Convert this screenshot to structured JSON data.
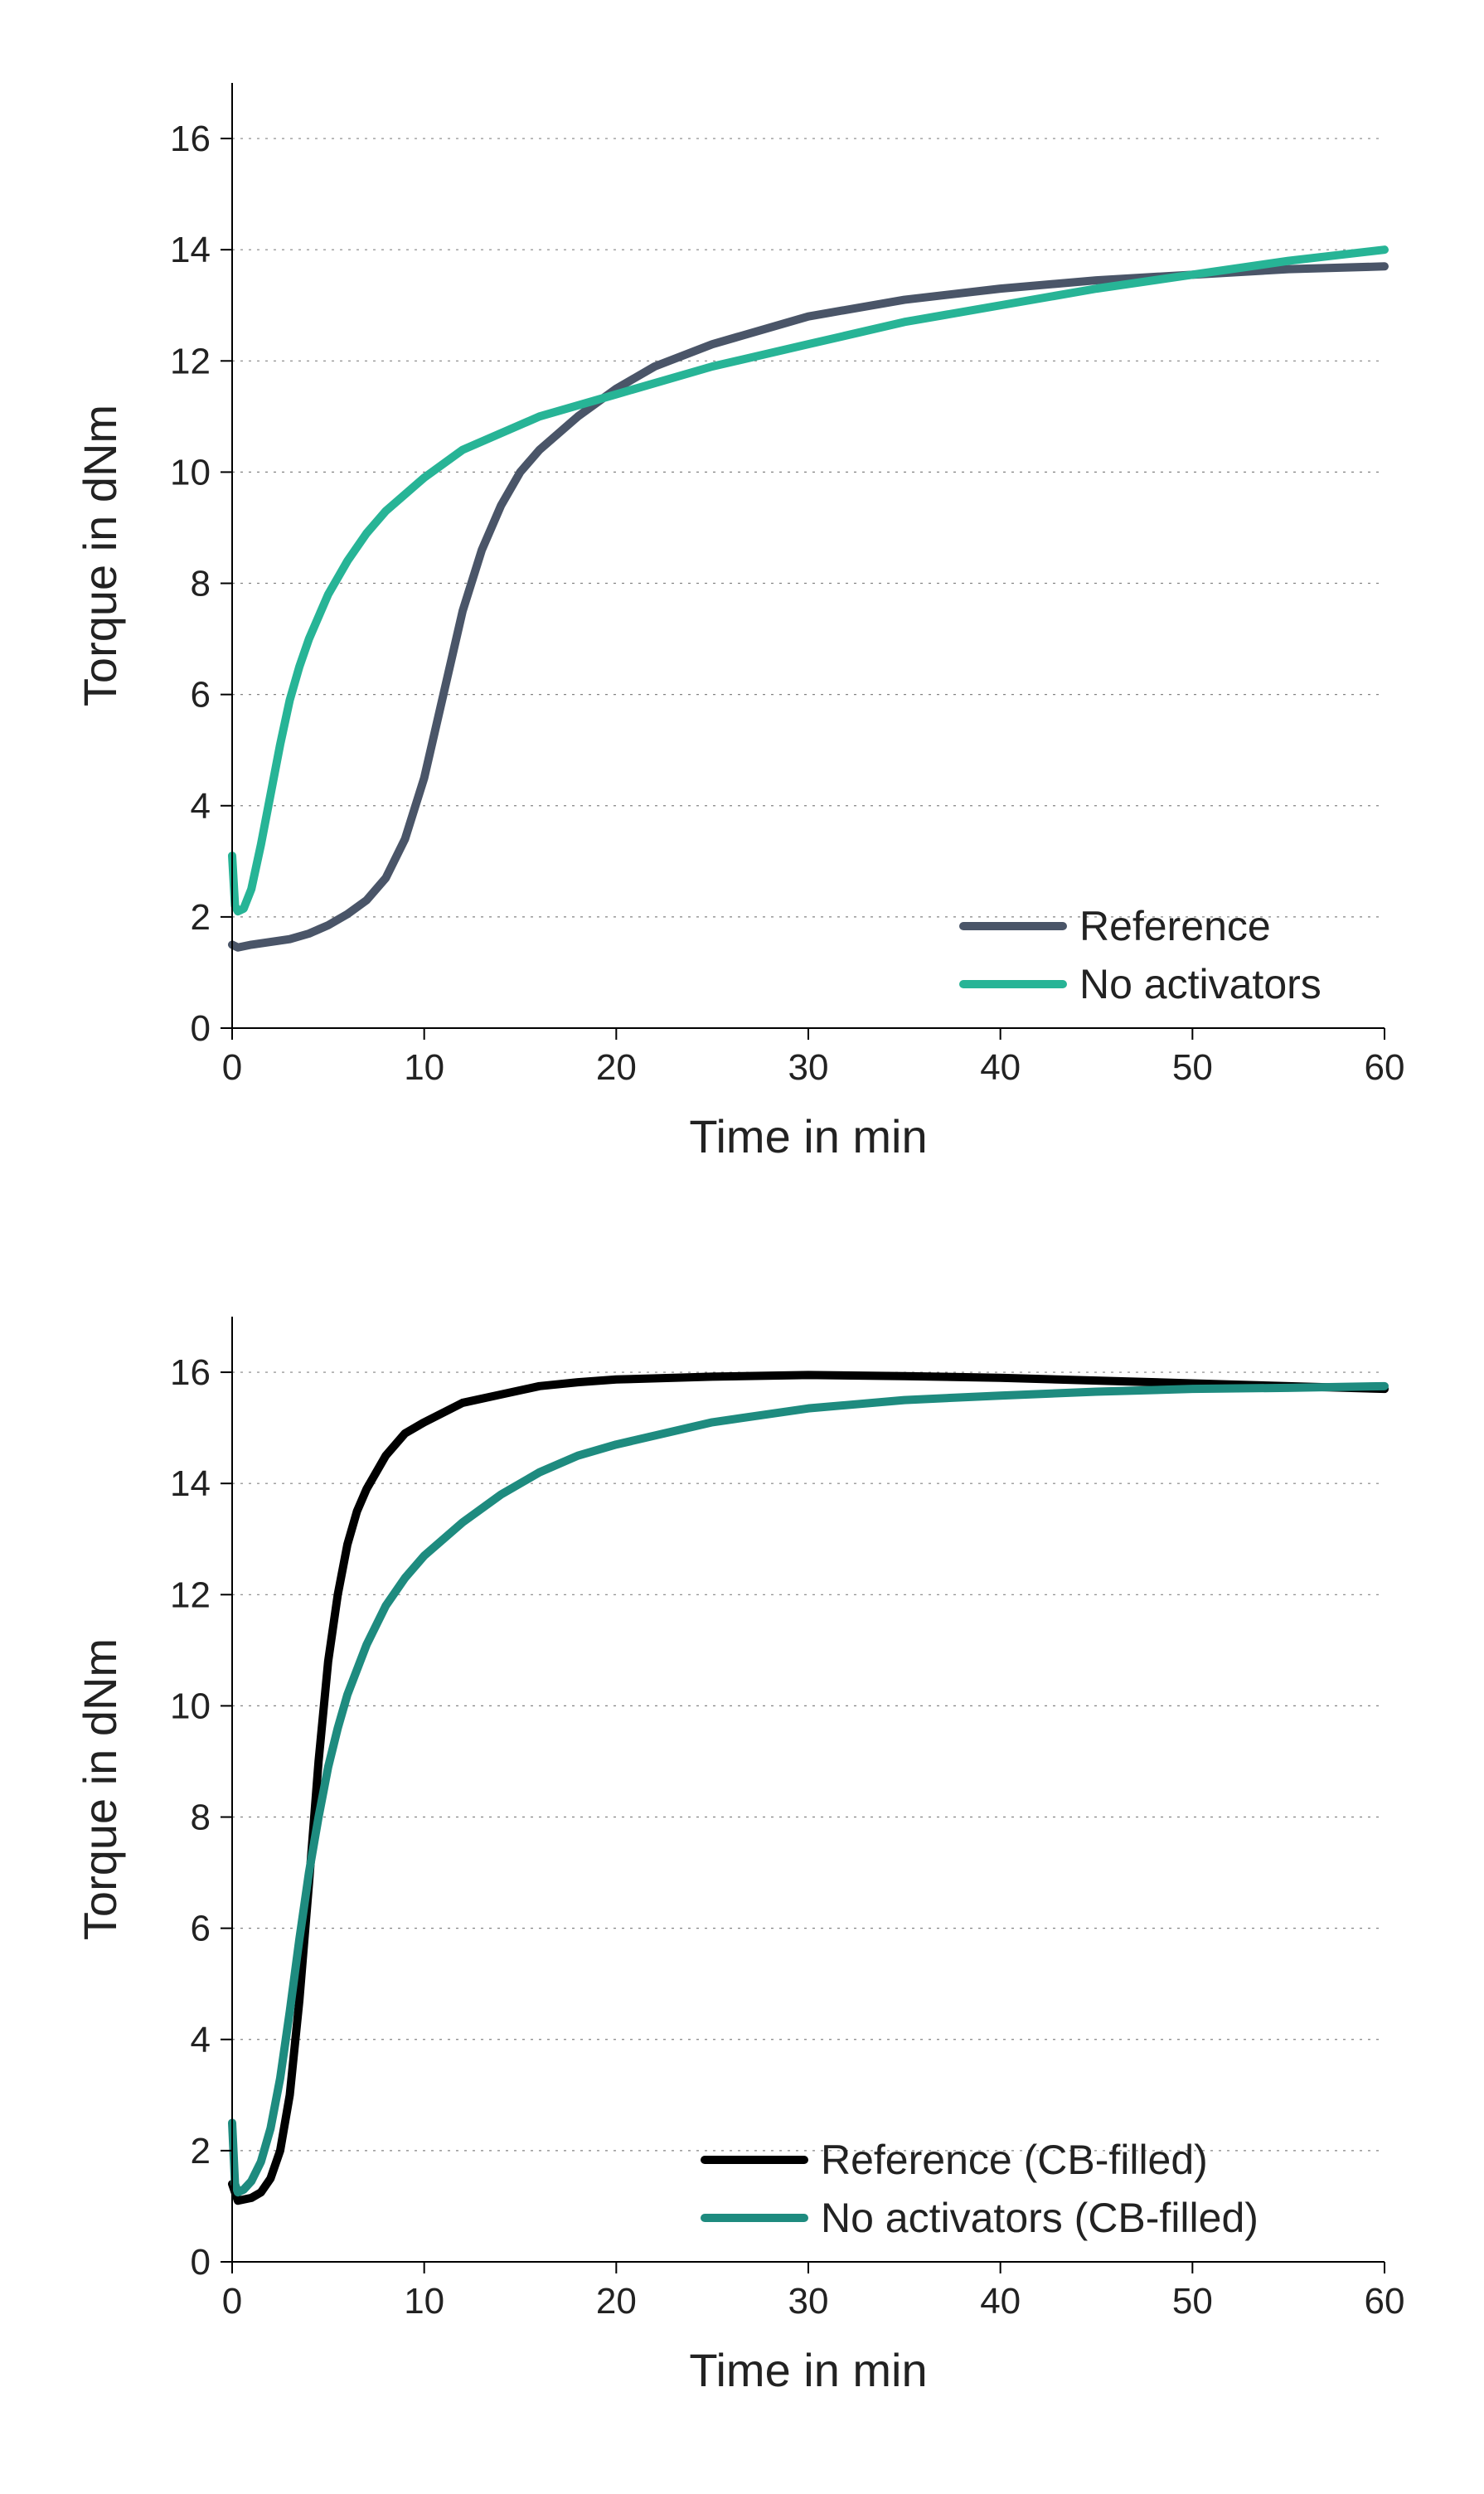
{
  "charts": [
    {
      "id": "top",
      "type": "line",
      "background_color": "#ffffff",
      "xlabel": "Time in min",
      "ylabel": "Torque in dNm",
      "label_fontsize": 56,
      "tick_fontsize": 44,
      "line_width": 10,
      "xlim": [
        0,
        60
      ],
      "ylim": [
        0,
        17
      ],
      "xticks": [
        0,
        10,
        20,
        30,
        40,
        50,
        60
      ],
      "yticks": [
        0,
        2,
        4,
        6,
        8,
        10,
        12,
        14,
        16
      ],
      "grid": {
        "y": true,
        "x": false,
        "color": "#848484",
        "dash": "3 7"
      },
      "axis_color": "#000000",
      "legend": {
        "position": "bottom-right",
        "items": [
          {
            "label": "Reference",
            "color": "#4a5568"
          },
          {
            "label": "No activators",
            "color": "#27b496"
          }
        ]
      },
      "series": [
        {
          "name": "Reference",
          "color": "#4a5568",
          "x": [
            0,
            0.3,
            1,
            2,
            3,
            4,
            5,
            6,
            7,
            8,
            9,
            10,
            11,
            12,
            13,
            14,
            15,
            16,
            18,
            20,
            22,
            25,
            30,
            35,
            40,
            45,
            50,
            55,
            60
          ],
          "y": [
            1.5,
            1.45,
            1.5,
            1.55,
            1.6,
            1.7,
            1.85,
            2.05,
            2.3,
            2.7,
            3.4,
            4.5,
            6.0,
            7.5,
            8.6,
            9.4,
            10.0,
            10.4,
            11.0,
            11.5,
            11.9,
            12.3,
            12.8,
            13.1,
            13.3,
            13.45,
            13.55,
            13.65,
            13.7
          ]
        },
        {
          "name": "No activators",
          "color": "#27b496",
          "x": [
            0,
            0.15,
            0.3,
            0.6,
            1,
            1.5,
            2,
            2.5,
            3,
            3.5,
            4,
            5,
            6,
            7,
            8,
            9,
            10,
            12,
            14,
            16,
            18,
            20,
            25,
            30,
            35,
            40,
            45,
            50,
            55,
            60
          ],
          "y": [
            3.1,
            2.2,
            2.1,
            2.15,
            2.5,
            3.3,
            4.2,
            5.1,
            5.9,
            6.5,
            7.0,
            7.8,
            8.4,
            8.9,
            9.3,
            9.6,
            9.9,
            10.4,
            10.7,
            11.0,
            11.2,
            11.4,
            11.9,
            12.3,
            12.7,
            13.0,
            13.3,
            13.55,
            13.8,
            14.0
          ]
        }
      ]
    },
    {
      "id": "bottom",
      "type": "line",
      "background_color": "#ffffff",
      "xlabel": "Time in min",
      "ylabel": "Torque in dNm",
      "label_fontsize": 56,
      "tick_fontsize": 44,
      "line_width": 10,
      "xlim": [
        0,
        60
      ],
      "ylim": [
        0,
        17
      ],
      "xticks": [
        0,
        10,
        20,
        30,
        40,
        50,
        60
      ],
      "yticks": [
        0,
        2,
        4,
        6,
        8,
        10,
        12,
        14,
        16
      ],
      "grid": {
        "y": true,
        "x": false,
        "color": "#848484",
        "dash": "3 7"
      },
      "axis_color": "#000000",
      "legend": {
        "position": "bottom-right",
        "items": [
          {
            "label": "Reference (CB-filled)",
            "color": "#000000"
          },
          {
            "label": "No activators (CB-filled)",
            "color": "#1e8b7f"
          }
        ]
      },
      "series": [
        {
          "name": "Reference (CB-filled)",
          "color": "#000000",
          "x": [
            0,
            0.3,
            1,
            1.5,
            2,
            2.5,
            3,
            3.5,
            4,
            4.5,
            5,
            5.5,
            6,
            6.5,
            7,
            8,
            9,
            10,
            12,
            14,
            16,
            18,
            20,
            25,
            30,
            35,
            40,
            45,
            50,
            55,
            60
          ],
          "y": [
            1.4,
            1.1,
            1.15,
            1.25,
            1.5,
            2.0,
            3.0,
            4.7,
            6.8,
            9.0,
            10.8,
            12.0,
            12.9,
            13.5,
            13.9,
            14.5,
            14.9,
            15.1,
            15.45,
            15.6,
            15.75,
            15.82,
            15.87,
            15.92,
            15.95,
            15.93,
            15.9,
            15.85,
            15.8,
            15.75,
            15.7
          ]
        },
        {
          "name": "No activators (CB-filled)",
          "color": "#1e8b7f",
          "x": [
            0,
            0.15,
            0.3,
            0.6,
            1,
            1.5,
            2,
            2.5,
            3,
            3.5,
            4,
            4.5,
            5,
            5.5,
            6,
            7,
            8,
            9,
            10,
            12,
            14,
            16,
            18,
            20,
            25,
            30,
            35,
            40,
            45,
            50,
            55,
            60
          ],
          "y": [
            2.5,
            1.4,
            1.25,
            1.3,
            1.45,
            1.8,
            2.4,
            3.3,
            4.5,
            5.8,
            7.0,
            8.0,
            8.9,
            9.6,
            10.2,
            11.1,
            11.8,
            12.3,
            12.7,
            13.3,
            13.8,
            14.2,
            14.5,
            14.7,
            15.1,
            15.35,
            15.5,
            15.58,
            15.65,
            15.7,
            15.72,
            15.75
          ]
        }
      ]
    }
  ]
}
